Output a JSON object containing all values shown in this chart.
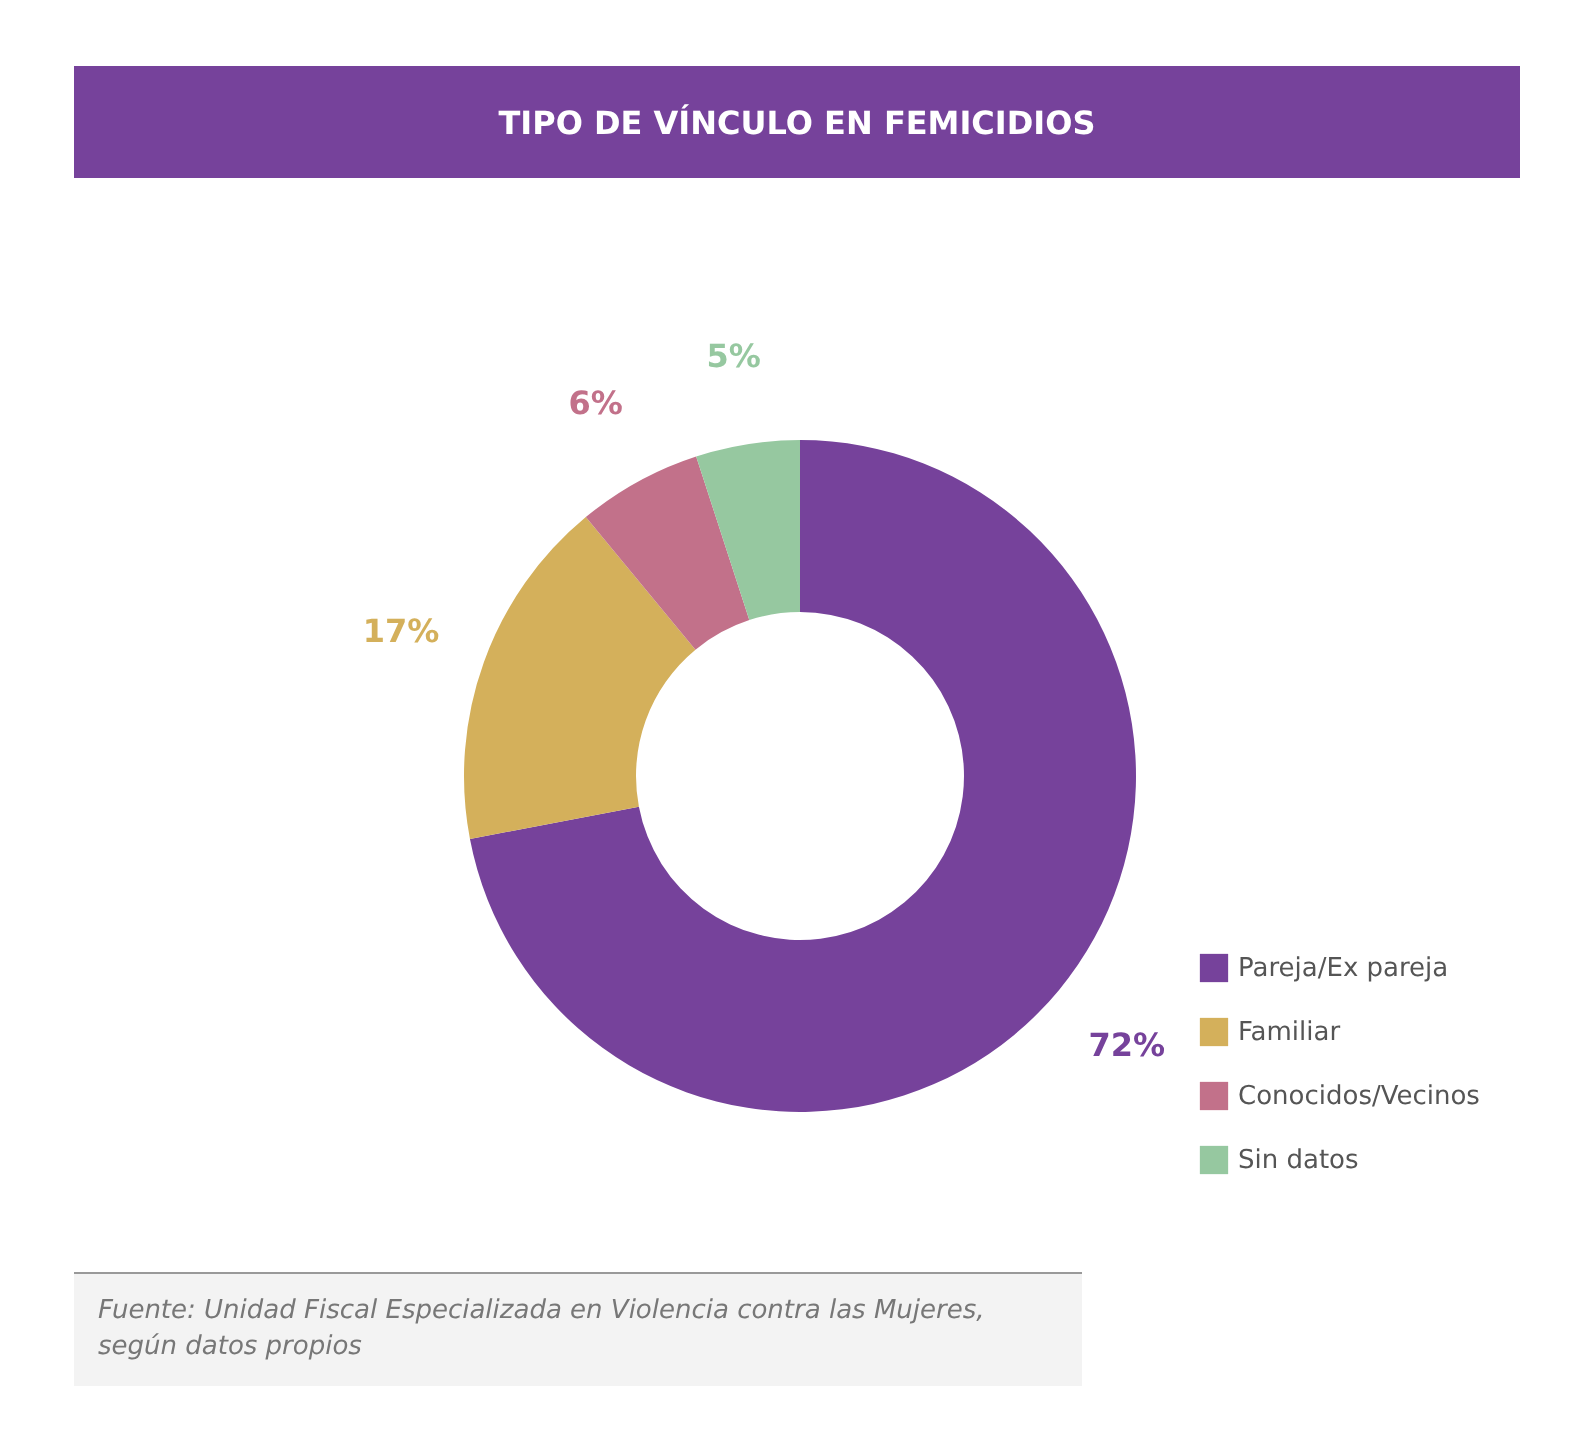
{
  "chart_data": {
    "type": "donut",
    "title": "TIPO DE VÍNCULO EN FEMICIDIOS",
    "categories": [
      "Pareja/Ex pareja",
      "Familiar",
      "Conocidos/Vecinos",
      "Sin datos"
    ],
    "values": [
      72,
      17,
      6,
      5
    ],
    "colors": [
      "#76429b",
      "#d4b05b",
      "#c2718a",
      "#96c8a0"
    ],
    "value_labels": [
      "72%",
      "17%",
      "6%",
      "5%"
    ],
    "legend": "bottom right",
    "annotations": [
      "Fuente: Unidad Fiscal Especializada en Violencia contra las Mujeres, según datos propios"
    ]
  }
}
